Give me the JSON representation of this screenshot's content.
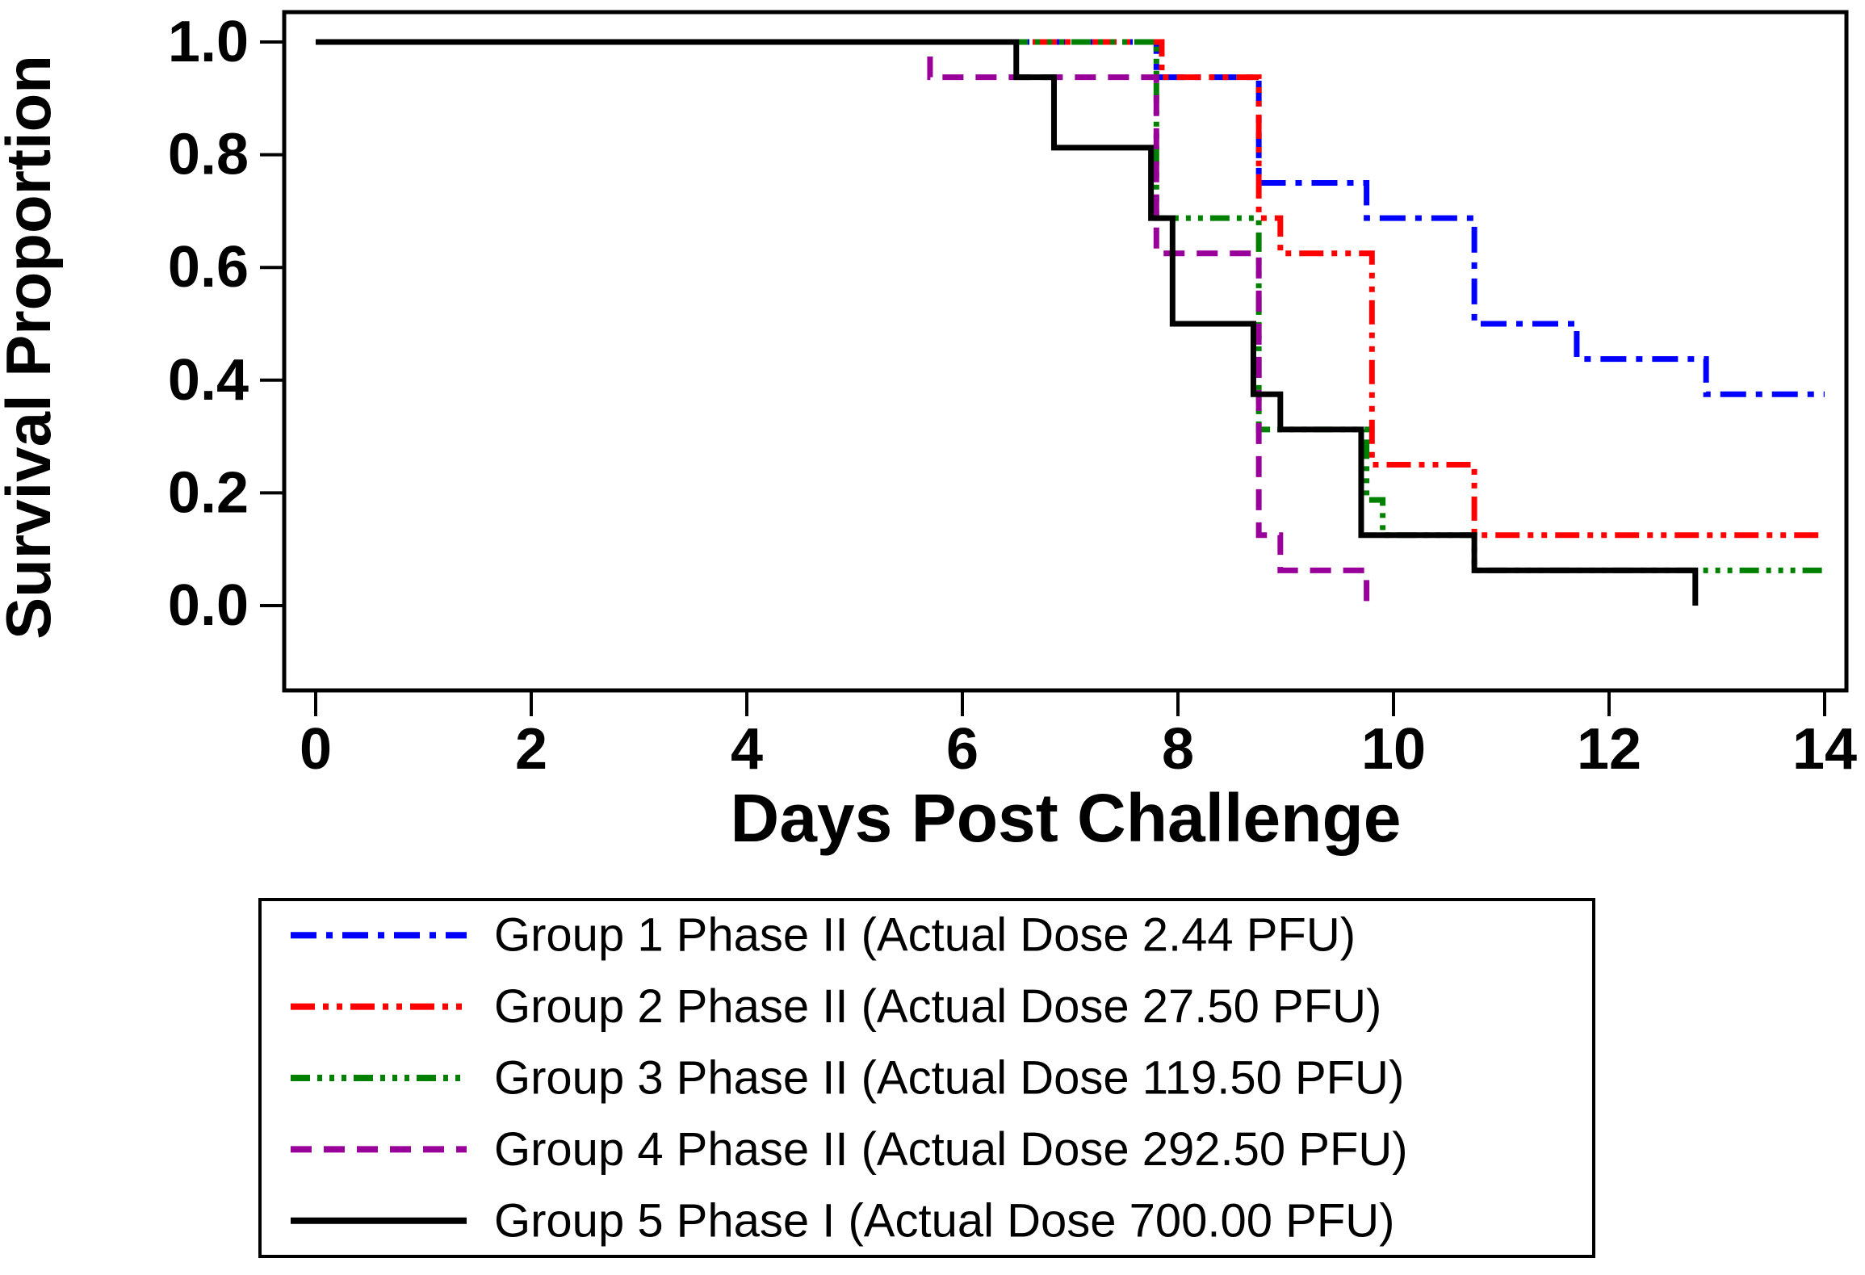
{
  "figure": {
    "description": "Kaplan-Meier survival curves, five dose groups"
  },
  "chart_data": {
    "type": "line",
    "subtype": "step-survival-kaplan-meier",
    "title": "",
    "xlabel": "Days Post Challenge",
    "ylabel": "Survival Proportion",
    "xlim": [
      0,
      14
    ],
    "ylim": [
      0.0,
      1.0
    ],
    "xticks": [
      0,
      2,
      4,
      6,
      8,
      10,
      12,
      14
    ],
    "ytick_labels": [
      "1.0",
      "0.8",
      "0.6",
      "0.4",
      "0.2",
      "0.0"
    ],
    "grid": false,
    "legend_position": "below-chart-boxed",
    "frame_color": "#000000",
    "series": [
      {
        "name": "Group 1 Phase II (Actual Dose 2.44 PFU)",
        "color": "#0000FF",
        "dash": "dashdot",
        "start": [
          0,
          1.0
        ],
        "steps": [
          [
            7.8,
            0.9375
          ],
          [
            8.75,
            0.75
          ],
          [
            9.75,
            0.6875
          ],
          [
            10.75,
            0.5
          ],
          [
            11.7,
            0.4375
          ],
          [
            12.9,
            0.375
          ]
        ],
        "end_x": 14
      },
      {
        "name": "Group 2 Phase II (Actual Dose 27.50 PFU)",
        "color": "#FF0000",
        "dash": "dashdotdot",
        "start": [
          0,
          1.0
        ],
        "steps": [
          [
            7.85,
            0.9375
          ],
          [
            8.75,
            0.6875
          ],
          [
            8.95,
            0.625
          ],
          [
            9.8,
            0.25
          ],
          [
            10.75,
            0.125
          ]
        ],
        "end_x": 14
      },
      {
        "name": "Group 3 Phase II (Actual Dose 119.50 PFU)",
        "color": "#008000",
        "dash": "dashdotdotdot",
        "start": [
          0,
          1.0
        ],
        "steps": [
          [
            7.8,
            0.6875
          ],
          [
            8.75,
            0.3125
          ],
          [
            9.75,
            0.1875
          ],
          [
            9.9,
            0.125
          ],
          [
            10.75,
            0.0625
          ]
        ],
        "end_x": 14
      },
      {
        "name": "Group 4 Phase II (Actual Dose 292.50 PFU)",
        "color": "#990099",
        "dash": "dashed",
        "start": [
          0,
          1.0
        ],
        "steps": [
          [
            5.7,
            0.9375
          ],
          [
            7.8,
            0.625
          ],
          [
            8.75,
            0.125
          ],
          [
            8.95,
            0.0625
          ],
          [
            9.75,
            0.0
          ]
        ],
        "end_x": null
      },
      {
        "name": "Group 5 Phase I  (Actual Dose 700.00 PFU)",
        "color": "#000000",
        "dash": "solid",
        "start": [
          0,
          1.0
        ],
        "steps": [
          [
            6.5,
            0.9375
          ],
          [
            6.85,
            0.8125
          ],
          [
            7.75,
            0.6875
          ],
          [
            7.95,
            0.5
          ],
          [
            8.7,
            0.375
          ],
          [
            8.95,
            0.3125
          ],
          [
            9.7,
            0.125
          ],
          [
            10.75,
            0.0625
          ],
          [
            12.8,
            0.0
          ]
        ],
        "end_x": null
      }
    ]
  }
}
